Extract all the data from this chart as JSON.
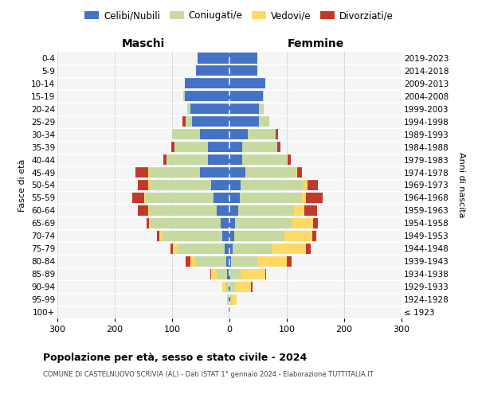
{
  "age_groups": [
    "100+",
    "95-99",
    "90-94",
    "85-89",
    "80-84",
    "75-79",
    "70-74",
    "65-69",
    "60-64",
    "55-59",
    "50-54",
    "45-49",
    "40-44",
    "35-39",
    "30-34",
    "25-29",
    "20-24",
    "15-19",
    "10-14",
    "5-9",
    "0-4"
  ],
  "birth_years": [
    "≤ 1923",
    "1924-1928",
    "1929-1933",
    "1934-1938",
    "1939-1943",
    "1944-1948",
    "1949-1953",
    "1954-1958",
    "1959-1963",
    "1964-1968",
    "1969-1973",
    "1974-1978",
    "1979-1983",
    "1984-1988",
    "1989-1993",
    "1994-1998",
    "1999-2003",
    "2004-2008",
    "2009-2013",
    "2014-2018",
    "2019-2023"
  ],
  "maschi": {
    "celibi": [
      1,
      2,
      2,
      4,
      5,
      8,
      12,
      15,
      22,
      28,
      32,
      52,
      38,
      38,
      52,
      65,
      68,
      78,
      78,
      58,
      55
    ],
    "coniugati": [
      0,
      2,
      5,
      18,
      55,
      82,
      105,
      122,
      118,
      118,
      108,
      88,
      72,
      58,
      48,
      12,
      5,
      2,
      0,
      0,
      0
    ],
    "vedovi": [
      0,
      0,
      5,
      10,
      8,
      8,
      5,
      3,
      2,
      2,
      2,
      2,
      0,
      0,
      0,
      0,
      0,
      0,
      0,
      0,
      0
    ],
    "divorziati": [
      0,
      0,
      0,
      2,
      8,
      5,
      5,
      5,
      18,
      22,
      18,
      22,
      5,
      5,
      0,
      5,
      0,
      0,
      0,
      0,
      0
    ]
  },
  "femmine": {
    "nubili": [
      0,
      2,
      2,
      2,
      3,
      5,
      8,
      10,
      15,
      18,
      20,
      28,
      22,
      22,
      32,
      52,
      52,
      58,
      62,
      48,
      48
    ],
    "coniugate": [
      0,
      2,
      8,
      18,
      45,
      70,
      88,
      98,
      98,
      108,
      108,
      88,
      78,
      62,
      48,
      18,
      8,
      2,
      0,
      0,
      0
    ],
    "vedove": [
      2,
      8,
      28,
      42,
      52,
      58,
      48,
      38,
      18,
      8,
      8,
      2,
      2,
      0,
      0,
      0,
      0,
      0,
      0,
      0,
      0
    ],
    "divorziate": [
      0,
      0,
      2,
      2,
      8,
      8,
      8,
      8,
      22,
      28,
      18,
      8,
      5,
      5,
      5,
      0,
      0,
      0,
      0,
      0,
      0
    ]
  },
  "colors": {
    "celibi": "#4472C4",
    "coniugati": "#c5d9a0",
    "vedovi": "#ffd966",
    "divorziati": "#c0392b"
  },
  "legend_labels": [
    "Celibi/Nubili",
    "Coniugati/e",
    "Vedovi/e",
    "Divorziati/e"
  ],
  "title": "Popolazione per età, sesso e stato civile - 2024",
  "subtitle": "COMUNE DI CASTELNUOVO SCRIVIA (AL) - Dati ISTAT 1° gennaio 2024 - Elaborazione TUTTITALIA.IT",
  "maschi_label": "Maschi",
  "femmine_label": "Femmine",
  "ylabel_left": "Fasce di età",
  "ylabel_right": "Anni di nascita",
  "xlim": 300,
  "bg_color": "#ffffff",
  "plot_bg": "#f5f5f5"
}
